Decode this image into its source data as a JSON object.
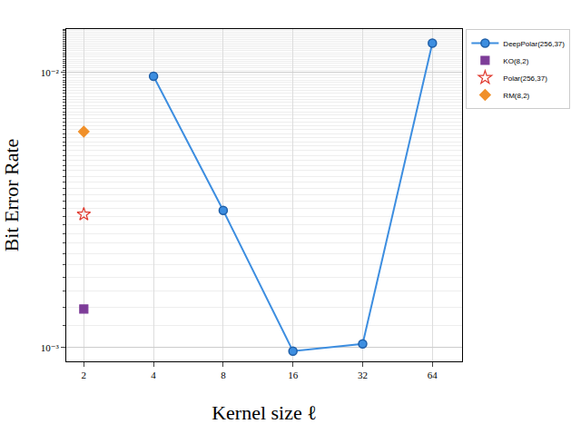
{
  "chart_data": {
    "type": "line",
    "x_label": "Kernel size ℓ",
    "y_label": "Bit Error Rate",
    "log": true,
    "grid": true,
    "legend": "top right",
    "xlim": [
      1.68,
      86
    ],
    "xticks": [
      2,
      4,
      8,
      16,
      32,
      64
    ],
    "ylim": [
      0.00089,
      0.0144
    ],
    "yticks": [
      {
        "value": 0.001,
        "label": "10⁻³"
      },
      {
        "value": 0.01,
        "label": "10⁻²"
      }
    ],
    "series": [
      {
        "name": "DeepPolar(256,37)",
        "type": "line",
        "color": "#3d8ee0",
        "marker": "circle",
        "line_style": "solid",
        "x": [
          4,
          8,
          16,
          32,
          64
        ],
        "values": [
          0.0097,
          0.00315,
          0.00097,
          0.00103,
          0.0128
        ]
      },
      {
        "name": "KO(8,2)",
        "type": "scatter",
        "color": "#7d3c98",
        "marker": "square",
        "x": [
          2
        ],
        "values": [
          0.00138
        ]
      },
      {
        "name": "Polar(256,37)",
        "type": "scatter",
        "color": "#e03a2f",
        "marker": "star-open",
        "x": [
          2
        ],
        "values": [
          0.00305
        ]
      },
      {
        "name": "RM(8,2)",
        "type": "scatter",
        "color": "#f0902a",
        "marker": "diamond",
        "x": [
          2
        ],
        "values": [
          0.0061
        ]
      }
    ]
  }
}
